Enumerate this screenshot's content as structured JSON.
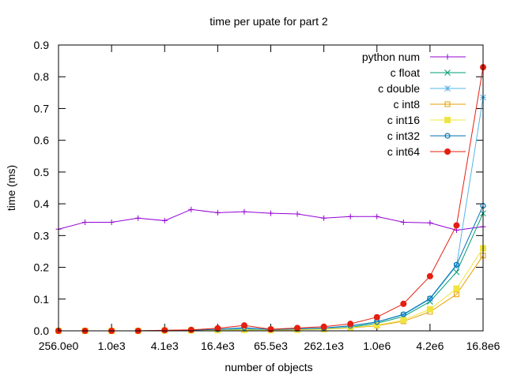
{
  "chart_data": {
    "type": "line",
    "title": "time per upate for part 2",
    "xlabel": "number of objects",
    "ylabel": "time (ms)",
    "x_scale": "log2",
    "xlim": [
      256,
      16777216
    ],
    "ylim": [
      0,
      0.9
    ],
    "grid": false,
    "legend_position": "top-right",
    "x_tick_labels": [
      "256.0e0",
      "1.0e3",
      "4.1e3",
      "16.4e3",
      "65.5e3",
      "262.1e3",
      "1.0e6",
      "4.2e6",
      "16.8e6"
    ],
    "x_ticks": [
      256,
      1024,
      4096,
      16384,
      65536,
      262144,
      1048576,
      4194304,
      16777216
    ],
    "y_ticks": [
      0.0,
      0.1,
      0.2,
      0.3,
      0.4,
      0.5,
      0.6,
      0.7,
      0.8,
      0.9
    ],
    "y_tick_labels": [
      "0.0",
      "0.1",
      "0.2",
      "0.3",
      "0.4",
      "0.5",
      "0.6",
      "0.7",
      "0.8",
      "0.9"
    ],
    "x": [
      256,
      512,
      1024,
      2048,
      4096,
      8192,
      16384,
      32768,
      65536,
      131072,
      262144,
      524288,
      1048576,
      2097152,
      4194304,
      8388608,
      16777216
    ],
    "series": [
      {
        "name": "python num",
        "color": "#9400d3",
        "marker": "plus",
        "values": [
          0.32,
          0.342,
          0.342,
          0.355,
          0.347,
          0.382,
          0.372,
          0.375,
          0.37,
          0.368,
          0.355,
          0.36,
          0.36,
          0.342,
          0.34,
          0.317,
          0.328
        ]
      },
      {
        "name": "c float",
        "color": "#009e73",
        "marker": "cross",
        "values": [
          0.0,
          0.0,
          0.0,
          0.0,
          0.001,
          0.001,
          0.003,
          0.005,
          0.003,
          0.004,
          0.006,
          0.011,
          0.024,
          0.045,
          0.092,
          0.185,
          0.37
        ]
      },
      {
        "name": "c double",
        "color": "#56b4e9",
        "marker": "star",
        "values": [
          0.0,
          0.0,
          0.0,
          0.0,
          0.001,
          0.001,
          0.004,
          0.007,
          0.003,
          0.005,
          0.008,
          0.014,
          0.028,
          0.05,
          0.1,
          0.205,
          0.735
        ]
      },
      {
        "name": "c int8",
        "color": "#e69f00",
        "marker": "box",
        "values": [
          0.0,
          0.0,
          0.0,
          0.0,
          0.001,
          0.001,
          0.002,
          0.003,
          0.002,
          0.003,
          0.005,
          0.009,
          0.016,
          0.03,
          0.06,
          0.115,
          0.237
        ]
      },
      {
        "name": "c int16",
        "color": "#f0e442",
        "marker": "filledbox",
        "values": [
          0.0,
          0.0,
          0.0,
          0.0,
          0.001,
          0.001,
          0.002,
          0.003,
          0.002,
          0.003,
          0.005,
          0.01,
          0.018,
          0.034,
          0.068,
          0.133,
          0.26
        ]
      },
      {
        "name": "c int32",
        "color": "#0072b2",
        "marker": "circle",
        "values": [
          0.0,
          0.0,
          0.0,
          0.0,
          0.001,
          0.002,
          0.005,
          0.01,
          0.004,
          0.006,
          0.009,
          0.016,
          0.028,
          0.052,
          0.102,
          0.208,
          0.394
        ]
      },
      {
        "name": "c int64",
        "color": "#e51e10",
        "marker": "filledcircle",
        "values": [
          0.0,
          0.0,
          0.0,
          0.0,
          0.002,
          0.003,
          0.008,
          0.017,
          0.005,
          0.009,
          0.013,
          0.022,
          0.043,
          0.085,
          0.172,
          0.332,
          0.83
        ]
      }
    ]
  }
}
